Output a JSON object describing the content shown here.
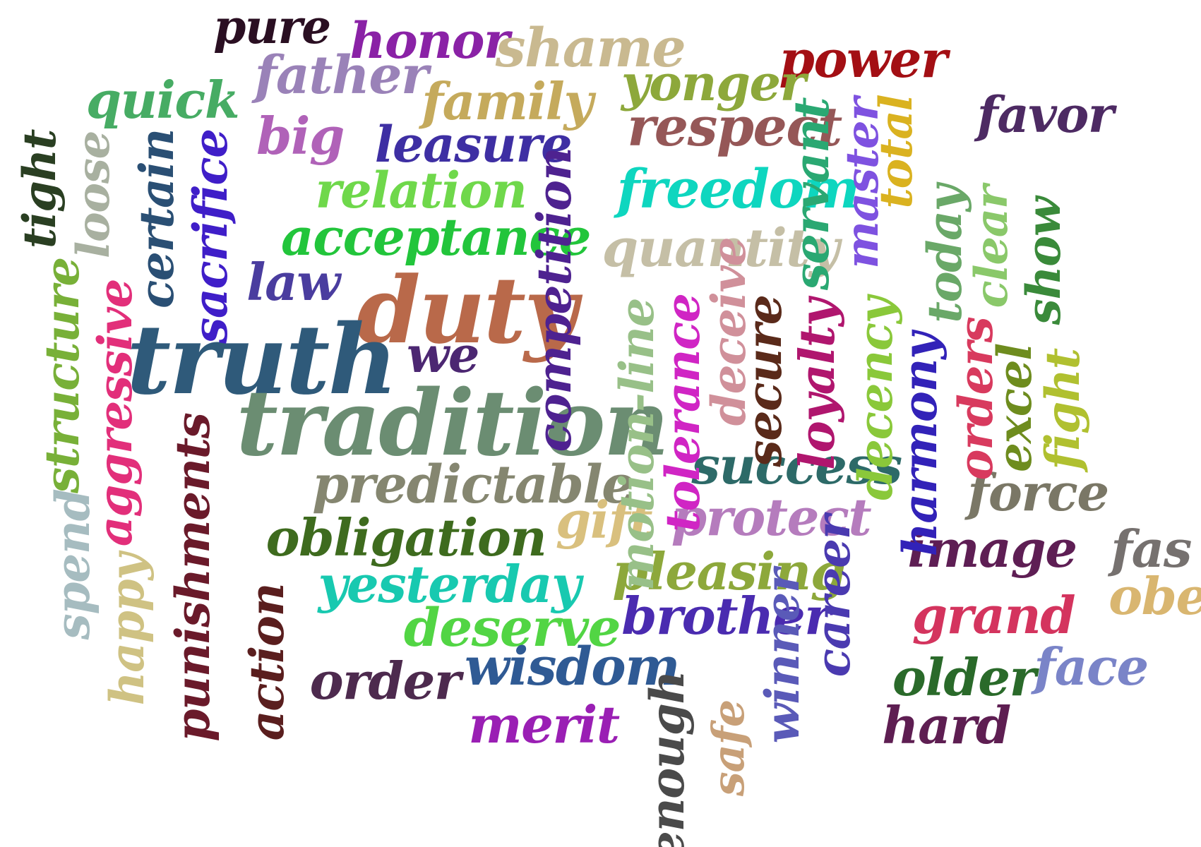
{
  "words": [
    {
      "text": "pure",
      "color": "#2a0f22"
    },
    {
      "text": "honor",
      "color": "#8a22a6"
    },
    {
      "text": "shame",
      "color": "#c9b990"
    },
    {
      "text": "power",
      "color": "#a30f14"
    },
    {
      "text": "quick",
      "color": "#47ac64"
    },
    {
      "text": "father",
      "color": "#9a82b8"
    },
    {
      "text": "family",
      "color": "#c5aa5c"
    },
    {
      "text": "yonger",
      "color": "#8da83b"
    },
    {
      "text": "favor",
      "color": "#4d2a63"
    },
    {
      "text": "big",
      "color": "#b062b8"
    },
    {
      "text": "leasure",
      "color": "#3e2fa3"
    },
    {
      "text": "respect",
      "color": "#955757"
    },
    {
      "text": "relation",
      "color": "#6fd84b"
    },
    {
      "text": "freedom",
      "color": "#0ed6bf"
    },
    {
      "text": "acceptance",
      "color": "#22c53b"
    },
    {
      "text": "quantity",
      "color": "#c5bfa6"
    },
    {
      "text": "law",
      "color": "#4a3d9f"
    },
    {
      "text": "duty",
      "color": "#b9694a"
    },
    {
      "text": "truth",
      "color": "#2f5a7a"
    },
    {
      "text": "we",
      "color": "#4c2772"
    },
    {
      "text": "tradition",
      "color": "#6b8d72"
    },
    {
      "text": "predictable",
      "color": "#858670"
    },
    {
      "text": "success",
      "color": "#2d6a68"
    },
    {
      "text": "force",
      "color": "#7a7766"
    },
    {
      "text": "obligation",
      "color": "#3e6b1e"
    },
    {
      "text": "gift",
      "color": "#d9c07e"
    },
    {
      "text": "protect",
      "color": "#b57cbd"
    },
    {
      "text": "image",
      "color": "#5e1e54"
    },
    {
      "text": "fas",
      "color": "#76716f"
    },
    {
      "text": "yesterday",
      "color": "#18c9b0"
    },
    {
      "text": "pleasing",
      "color": "#8da83b"
    },
    {
      "text": "grand",
      "color": "#d4345e"
    },
    {
      "text": "obe",
      "color": "#d9b670"
    },
    {
      "text": "deserve",
      "color": "#52d544"
    },
    {
      "text": "brother",
      "color": "#4a2bb0"
    },
    {
      "text": "face",
      "color": "#7a84c8"
    },
    {
      "text": "order",
      "color": "#4d2a4e"
    },
    {
      "text": "wisdom",
      "color": "#2f5a94"
    },
    {
      "text": "older",
      "color": "#2a6a2a"
    },
    {
      "text": "merit",
      "color": "#9a1fb4"
    },
    {
      "text": "hard",
      "color": "#5e1e52"
    },
    {
      "text": "tight",
      "color": "#2a3f22"
    },
    {
      "text": "loose",
      "color": "#a8b0a0"
    },
    {
      "text": "certain",
      "color": "#2a4f74"
    },
    {
      "text": "sacrifice",
      "color": "#3f1ec8"
    },
    {
      "text": "structure",
      "color": "#78b038"
    },
    {
      "text": "aggressive",
      "color": "#e22f7a"
    },
    {
      "text": "spend",
      "color": "#a6bcc0"
    },
    {
      "text": "happy",
      "color": "#cfc283"
    },
    {
      "text": "punishments",
      "color": "#6a1a2a"
    },
    {
      "text": "action",
      "color": "#5a1e1e"
    },
    {
      "text": "competition",
      "color": "#4e2290"
    },
    {
      "text": "motion-line",
      "color": "#98c088"
    },
    {
      "text": "tolerance",
      "color": "#d025c4"
    },
    {
      "text": "deceive",
      "color": "#d0909a"
    },
    {
      "text": "secure",
      "color": "#5a2a1a"
    },
    {
      "text": "servant",
      "color": "#2aa872"
    },
    {
      "text": "loyalty",
      "color": "#b0166e"
    },
    {
      "text": "master",
      "color": "#7e52e0"
    },
    {
      "text": "total",
      "color": "#dab220"
    },
    {
      "text": "decency",
      "color": "#8ac83a"
    },
    {
      "text": "harmony",
      "color": "#3222b8"
    },
    {
      "text": "today",
      "color": "#6aa868"
    },
    {
      "text": "orders",
      "color": "#d83a5e"
    },
    {
      "text": "clear",
      "color": "#8ac86a"
    },
    {
      "text": "excel",
      "color": "#6e8c1e"
    },
    {
      "text": "show",
      "color": "#3a8a3a"
    },
    {
      "text": "fight",
      "color": "#b0c030"
    },
    {
      "text": "career",
      "color": "#4a3ab0"
    },
    {
      "text": "winner",
      "color": "#5a5ab8"
    },
    {
      "text": "safe",
      "color": "#c8a078"
    },
    {
      "text": "enough",
      "color": "#4a4a4a"
    }
  ]
}
